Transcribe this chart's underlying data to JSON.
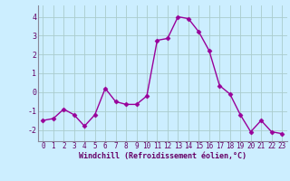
{
  "x": [
    0,
    1,
    2,
    3,
    4,
    5,
    6,
    7,
    8,
    9,
    10,
    11,
    12,
    13,
    14,
    15,
    16,
    17,
    18,
    19,
    20,
    21,
    22,
    23
  ],
  "y": [
    -1.5,
    -1.4,
    -0.9,
    -1.2,
    -1.8,
    -1.2,
    0.2,
    -0.5,
    -0.65,
    -0.65,
    -0.2,
    2.75,
    2.85,
    4.0,
    3.9,
    3.2,
    2.2,
    0.35,
    -0.1,
    -1.2,
    -2.1,
    -1.5,
    -2.1,
    -2.2
  ],
  "line_color": "#990099",
  "marker": "D",
  "marker_size": 2.5,
  "line_width": 1.0,
  "bg_color": "#cceeff",
  "grid_color": "#aacccc",
  "tick_color": "#660066",
  "label_color": "#660066",
  "xlabel": "Windchill (Refroidissement éolien,°C)",
  "ylim": [
    -2.6,
    4.6
  ],
  "yticks": [
    -2,
    -1,
    0,
    1,
    2,
    3,
    4
  ],
  "xticks": [
    0,
    1,
    2,
    3,
    4,
    5,
    6,
    7,
    8,
    9,
    10,
    11,
    12,
    13,
    14,
    15,
    16,
    17,
    18,
    19,
    20,
    21,
    22,
    23
  ]
}
